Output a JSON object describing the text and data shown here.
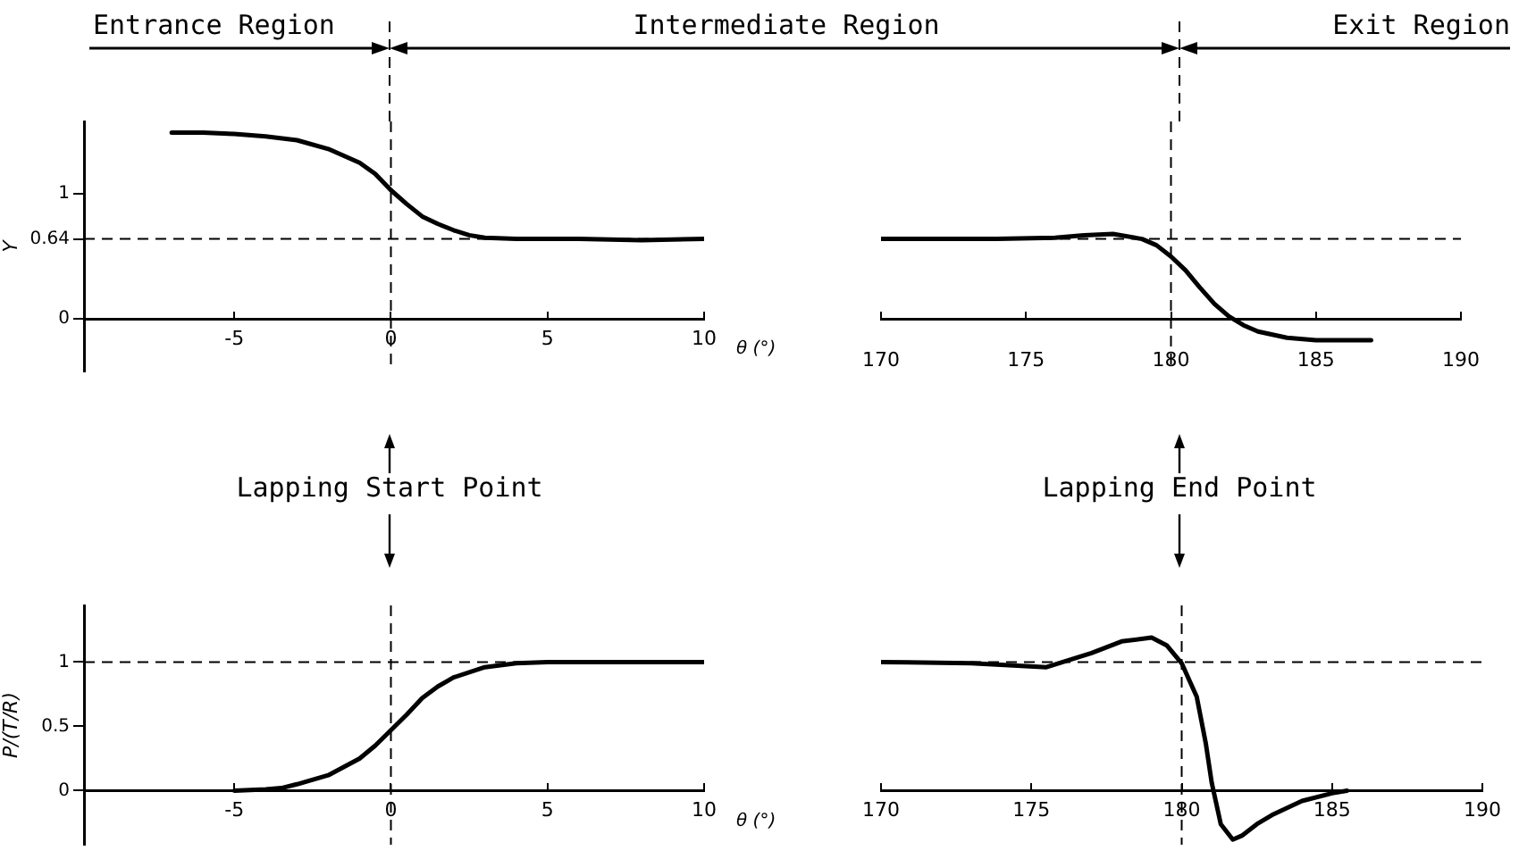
{
  "chart_data": [
    {
      "type": "line",
      "xlabel": "θ (°)",
      "ylabel": "Y",
      "annotations": [
        "Entrance Region",
        "Intermediate Region"
      ],
      "xlim": [
        -9.8,
        10
      ],
      "xticks": [
        -5,
        0,
        5,
        10
      ],
      "ylim": [
        -0.42,
        1.58
      ],
      "yticks": [
        0,
        0.64,
        1
      ],
      "series": [
        {
          "color": "#000000",
          "x": [
            -7,
            -6,
            -5,
            -4,
            -3,
            -2,
            -1,
            -0.5,
            0,
            0.5,
            1,
            1.5,
            2,
            2.5,
            3,
            4,
            6,
            8,
            10
          ],
          "values": [
            1.49,
            1.49,
            1.48,
            1.46,
            1.43,
            1.36,
            1.25,
            1.16,
            1.03,
            0.92,
            0.82,
            0.76,
            0.71,
            0.67,
            0.65,
            0.64,
            0.64,
            0.63,
            0.64
          ]
        }
      ],
      "ref_lines": [
        {
          "axis": "x",
          "value": 0,
          "line_style": "dashed",
          "color": "#000000"
        },
        {
          "axis": "y",
          "value": 0.64,
          "line_style": "dashed",
          "color": "#000000"
        }
      ],
      "marker": "none",
      "legend": false
    },
    {
      "type": "line",
      "annotations": [
        "Exit Region"
      ],
      "xlim": [
        170,
        190
      ],
      "xticks": [
        170,
        175,
        180,
        185,
        190
      ],
      "ylim": [
        -0.42,
        1.58
      ],
      "tick_labels": "x",
      "series": [
        {
          "color": "#000000",
          "x": [
            170,
            172,
            174,
            176,
            177,
            178,
            179,
            179.5,
            180,
            180.5,
            181,
            181.5,
            182,
            182.5,
            183,
            184,
            185,
            186,
            186.9
          ],
          "values": [
            0.64,
            0.64,
            0.64,
            0.65,
            0.67,
            0.68,
            0.64,
            0.59,
            0.5,
            0.39,
            0.25,
            0.12,
            0.02,
            -0.05,
            -0.1,
            -0.15,
            -0.17,
            -0.17,
            -0.17
          ]
        }
      ],
      "ref_lines": [
        {
          "axis": "x",
          "value": 180,
          "line_style": "dashed",
          "color": "#000000"
        },
        {
          "axis": "y",
          "value": 0.64,
          "line_style": "dashed",
          "color": "#000000"
        }
      ],
      "marker": "none",
      "legend": false
    },
    {
      "type": "line",
      "xlabel": "θ (°)",
      "ylabel": "P/(T/R)",
      "annotations": [
        "Lapping Start Point"
      ],
      "xlim": [
        -9.8,
        10
      ],
      "xticks": [
        -5,
        0,
        5,
        10
      ],
      "ylim": [
        -0.42,
        1.44
      ],
      "yticks": [
        0,
        0.5,
        1
      ],
      "series": [
        {
          "color": "#000000",
          "x": [
            -5,
            -4,
            -3.5,
            -3,
            -2,
            -1,
            -0.5,
            0,
            0.5,
            1,
            1.5,
            2,
            3,
            4,
            5,
            7,
            10
          ],
          "values": [
            0,
            0.01,
            0.02,
            0.05,
            0.12,
            0.25,
            0.35,
            0.47,
            0.59,
            0.72,
            0.81,
            0.88,
            0.96,
            0.99,
            1,
            1,
            1
          ]
        }
      ],
      "ref_lines": [
        {
          "axis": "x",
          "value": 0,
          "line_style": "dashed",
          "color": "#000000"
        },
        {
          "axis": "y",
          "value": 1,
          "line_style": "dashed",
          "color": "#000000"
        }
      ],
      "marker": "none",
      "legend": false
    },
    {
      "type": "line",
      "annotations": [
        "Lapping End Point"
      ],
      "xlim": [
        170,
        190
      ],
      "xticks": [
        170,
        175,
        180,
        185,
        190
      ],
      "ylim": [
        -0.42,
        1.44
      ],
      "tick_labels": "x",
      "series": [
        {
          "color": "#000000",
          "x": [
            170,
            173,
            175.5,
            177,
            178,
            179,
            179.5,
            180,
            180.5,
            180.8,
            181,
            181.3,
            181.7,
            182,
            182.5,
            183,
            184,
            185,
            185.5
          ],
          "values": [
            1,
            0.99,
            0.96,
            1.07,
            1.16,
            1.19,
            1.13,
            0.99,
            0.73,
            0.37,
            0.06,
            -0.26,
            -0.38,
            -0.35,
            -0.26,
            -0.19,
            -0.08,
            -0.02,
            0
          ]
        }
      ],
      "ref_lines": [
        {
          "axis": "x",
          "value": 180,
          "line_style": "dashed",
          "color": "#000000"
        },
        {
          "axis": "y",
          "value": 1,
          "line_style": "dashed",
          "color": "#000000"
        }
      ],
      "marker": "none",
      "legend": false
    }
  ]
}
